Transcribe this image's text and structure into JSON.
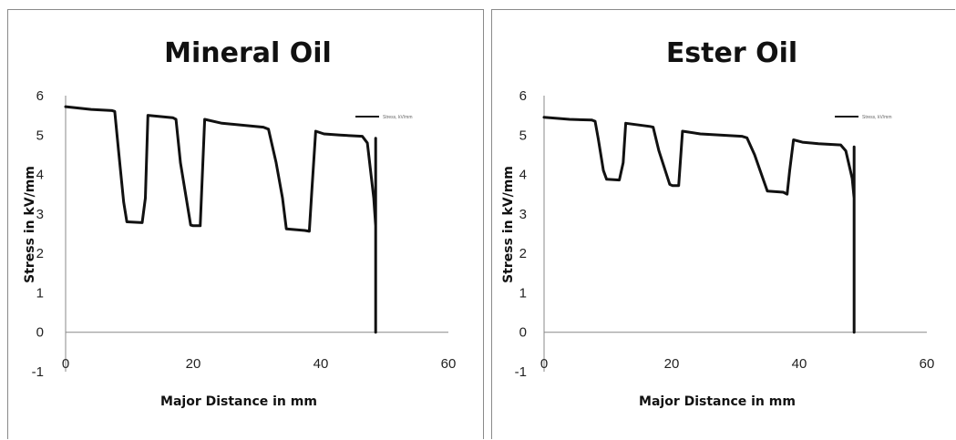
{
  "chart_data": [
    {
      "type": "line",
      "title": "Mineral Oil",
      "xlabel": "Major Distance in mm",
      "ylabel": "Stress in kV/mm",
      "xlim": [
        0,
        60
      ],
      "ylim": [
        -1,
        6
      ],
      "x_ticks": [
        "0",
        "20",
        "40",
        "60"
      ],
      "y_ticks": [
        "-1",
        "0",
        "1",
        "2",
        "3",
        "4",
        "5",
        "6"
      ],
      "grid": false,
      "legend_position": "top-right",
      "series": [
        {
          "name": "Stress, kV/mm",
          "x": [
            0,
            4,
            7.3,
            7.7,
            8.3,
            9.1,
            9.6,
            12,
            12.5,
            12.9,
            16.8,
            17.3,
            18,
            19.6,
            20,
            21.1,
            21.8,
            24.5,
            31,
            31.8,
            33,
            34,
            34.6,
            37.5,
            38.2,
            38.6,
            39.2,
            40.5,
            43,
            46.5,
            47.3,
            48.3,
            48.6,
            48.6,
            48.6,
            48.6
          ],
          "y": [
            5.72,
            5.65,
            5.62,
            5.6,
            4.6,
            3.3,
            2.8,
            2.78,
            3.4,
            5.5,
            5.44,
            5.4,
            4.3,
            2.72,
            2.7,
            2.7,
            5.4,
            5.3,
            5.2,
            5.15,
            4.3,
            3.4,
            2.62,
            2.58,
            2.56,
            3.6,
            5.1,
            5.03,
            5.0,
            4.97,
            4.8,
            3.4,
            2.7,
            4.92,
            1.0,
            0
          ]
        }
      ]
    },
    {
      "type": "line",
      "title": "Ester Oil",
      "xlabel": "Major Distance in mm",
      "ylabel": "Stress in kV/mm",
      "xlim": [
        0,
        60
      ],
      "ylim": [
        -1,
        6
      ],
      "x_ticks": [
        "0",
        "20",
        "40",
        "60"
      ],
      "y_ticks": [
        "-1",
        "0",
        "1",
        "2",
        "3",
        "4",
        "5",
        "6"
      ],
      "grid": false,
      "legend_position": "top-right",
      "series": [
        {
          "name": "Stress, kV/mm",
          "x": [
            0,
            4,
            7.5,
            8,
            8.5,
            9.3,
            9.8,
            11.8,
            12.4,
            12.8,
            16.6,
            17.1,
            18,
            19.7,
            20.1,
            21.1,
            21.7,
            24.5,
            31,
            31.8,
            33,
            34.3,
            35,
            37.5,
            38.1,
            38.5,
            39.1,
            40.5,
            43,
            46.5,
            47.3,
            48.3,
            48.6,
            48.6,
            48.6,
            48.6
          ],
          "y": [
            5.45,
            5.4,
            5.38,
            5.35,
            4.9,
            4.1,
            3.88,
            3.86,
            4.3,
            5.3,
            5.22,
            5.2,
            4.6,
            3.75,
            3.72,
            3.72,
            5.1,
            5.03,
            4.97,
            4.93,
            4.5,
            3.9,
            3.58,
            3.55,
            3.5,
            4.1,
            4.88,
            4.82,
            4.78,
            4.75,
            4.6,
            3.9,
            3.4,
            4.7,
            1.0,
            0
          ]
        }
      ]
    }
  ]
}
